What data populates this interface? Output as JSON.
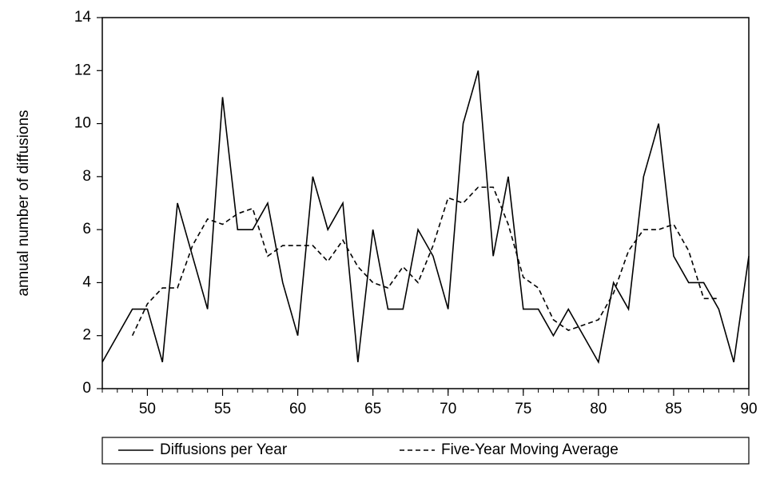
{
  "chart_data": {
    "type": "line",
    "ylabel": "annual number of diffusions",
    "x": [
      47,
      48,
      49,
      50,
      51,
      52,
      53,
      54,
      55,
      56,
      57,
      58,
      59,
      60,
      61,
      62,
      63,
      64,
      65,
      66,
      67,
      68,
      69,
      70,
      71,
      72,
      73,
      74,
      75,
      76,
      77,
      78,
      79,
      80,
      81,
      82,
      83,
      84,
      85,
      86,
      87,
      88,
      89,
      90
    ],
    "series": [
      {
        "name": "Diffusions per Year",
        "color": "#000000",
        "style": "solid",
        "values": [
          1,
          2,
          3,
          3,
          1,
          7,
          5,
          3,
          11,
          6,
          6,
          7,
          4,
          2,
          8,
          6,
          7,
          1,
          6,
          3,
          3,
          6,
          5,
          3,
          10,
          12,
          5,
          8,
          3,
          3,
          2,
          3,
          2,
          1,
          4,
          3,
          8,
          10,
          5,
          4,
          4,
          3,
          1,
          5
        ]
      },
      {
        "name": "Five-Year Moving Average",
        "color": "#000000",
        "style": "dashed",
        "values": [
          null,
          null,
          2,
          3.2,
          3.8,
          3.8,
          5.4,
          6.4,
          6.2,
          6.6,
          6.8,
          5,
          5.4,
          5.4,
          5.4,
          4.8,
          5.6,
          4.6,
          4,
          3.8,
          4.6,
          4,
          5.4,
          7.2,
          7,
          7.6,
          7.6,
          6.2,
          4.2,
          3.8,
          2.6,
          2.2,
          2.4,
          2.6,
          3.6,
          5.2,
          6,
          6,
          6.2,
          5.2,
          3.4,
          3.4,
          null,
          null
        ]
      }
    ],
    "xlim": [
      47,
      90
    ],
    "xticks": [
      50,
      55,
      60,
      65,
      70,
      75,
      80,
      85,
      90
    ],
    "ylim": [
      0,
      14
    ],
    "yticks": [
      0,
      2,
      4,
      6,
      8,
      10,
      12,
      14
    ],
    "legend": "bottom"
  }
}
